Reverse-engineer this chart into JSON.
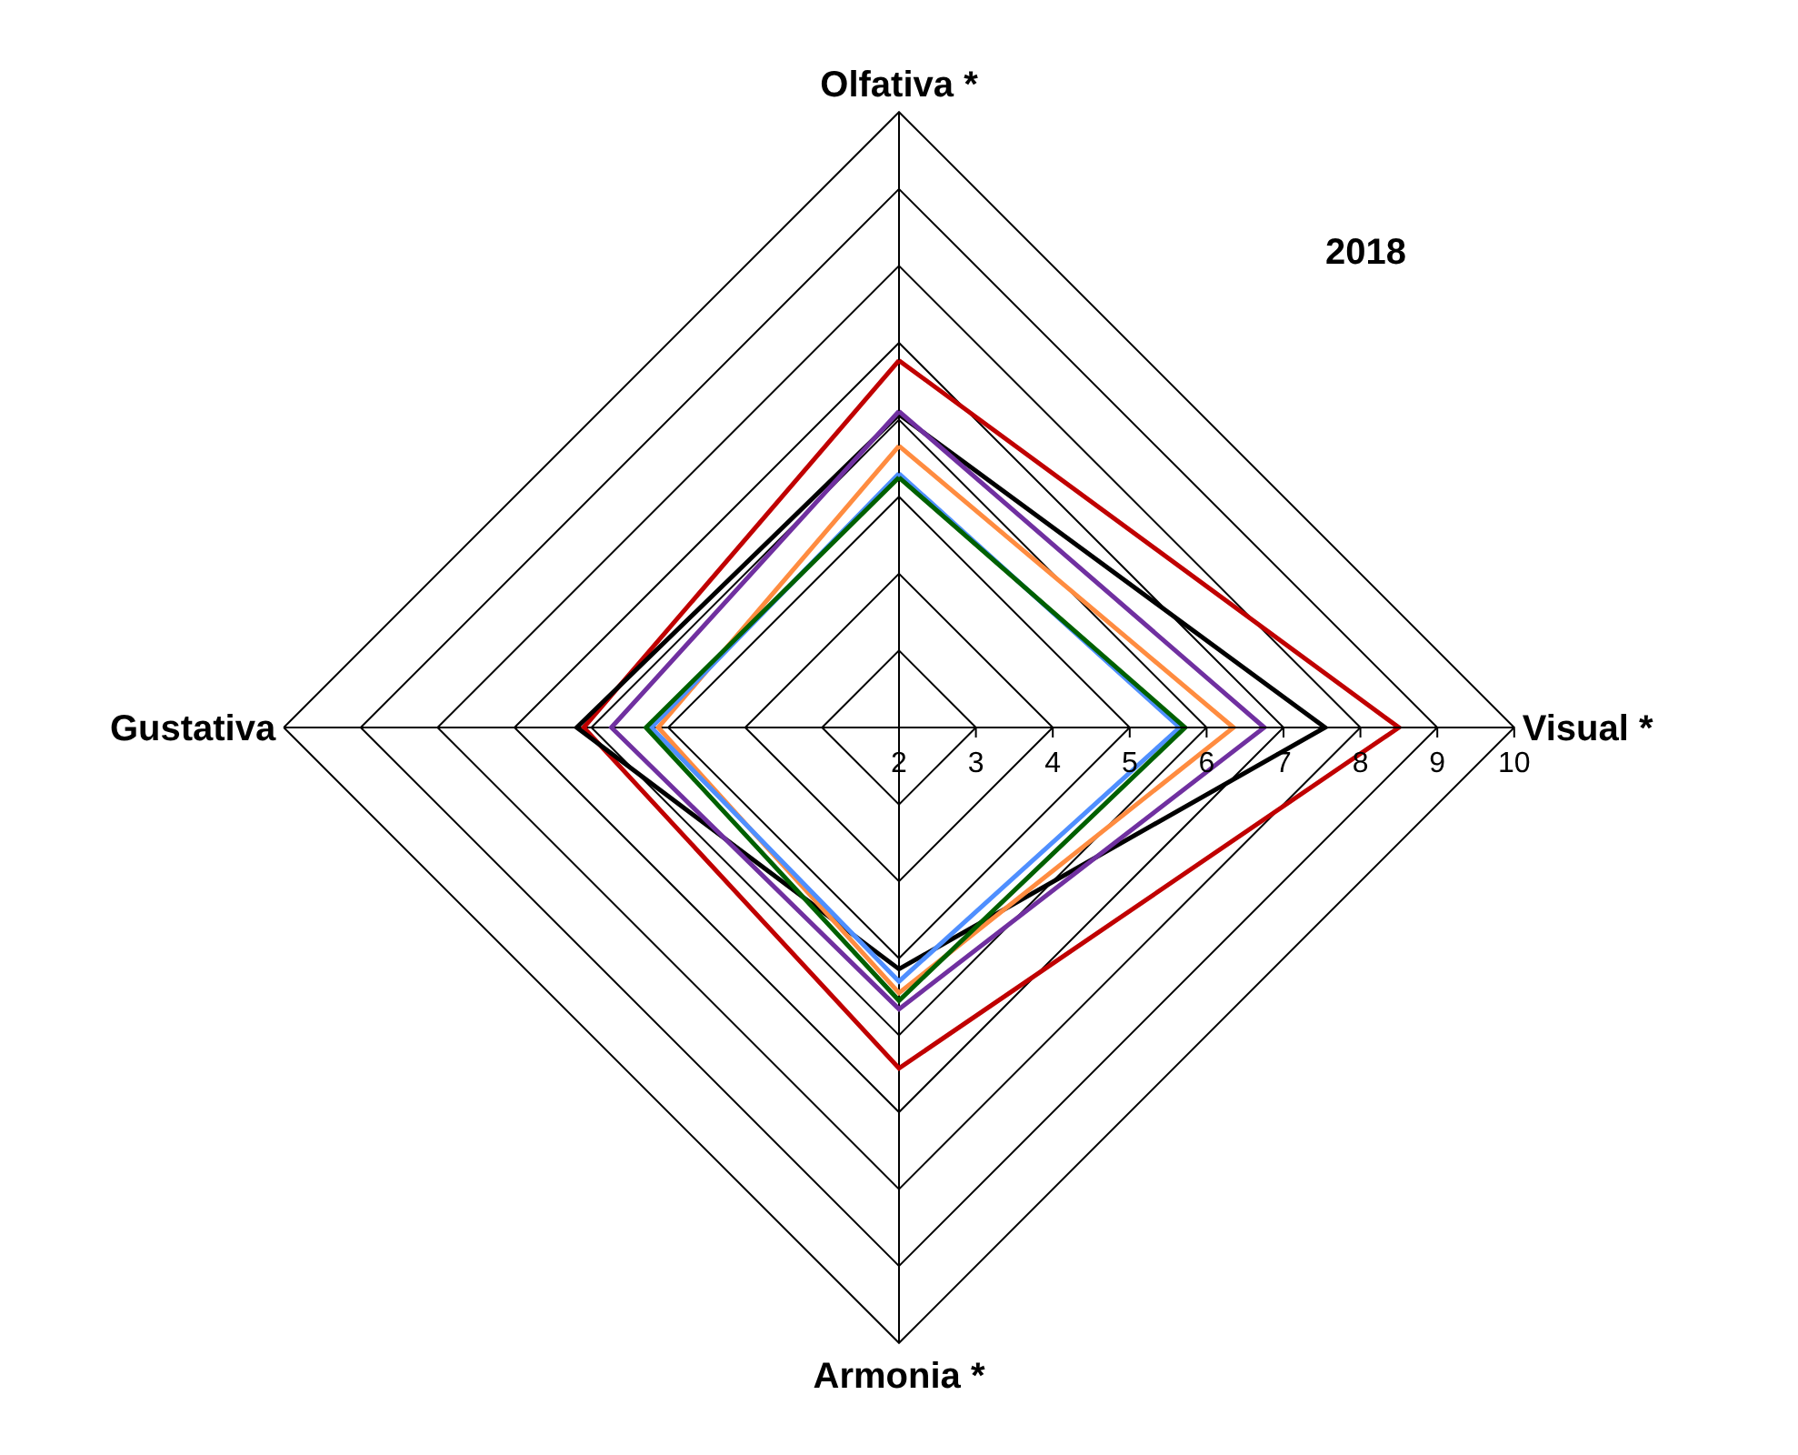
{
  "chart_data": {
    "type": "radar",
    "title": "2018",
    "categories": [
      "Olfativa *",
      "Visual *",
      "Armonia *",
      "Gustativa"
    ],
    "series": [
      {
        "color": "#c00000",
        "values": [
          6.77,
          8.5,
          6.43,
          6.1
        ]
      },
      {
        "color": "#000000",
        "values": [
          6.07,
          7.54,
          5.14,
          6.19
        ]
      },
      {
        "color": "#7030a0",
        "values": [
          6.11,
          6.75,
          5.66,
          5.74
        ]
      },
      {
        "color": "#ff8c40",
        "values": [
          5.66,
          6.35,
          5.45,
          5.13
        ]
      },
      {
        "color": "#4f8fff",
        "values": [
          5.3,
          5.65,
          5.3,
          5.22
        ]
      },
      {
        "color": "#006000",
        "values": [
          5.25,
          5.72,
          5.55,
          5.29
        ]
      }
    ],
    "ylim": [
      2,
      10
    ],
    "yticks": [
      2,
      3,
      4,
      5,
      6,
      7,
      8,
      9,
      10
    ],
    "grid": true,
    "marker": "none",
    "line_style": "solid"
  }
}
